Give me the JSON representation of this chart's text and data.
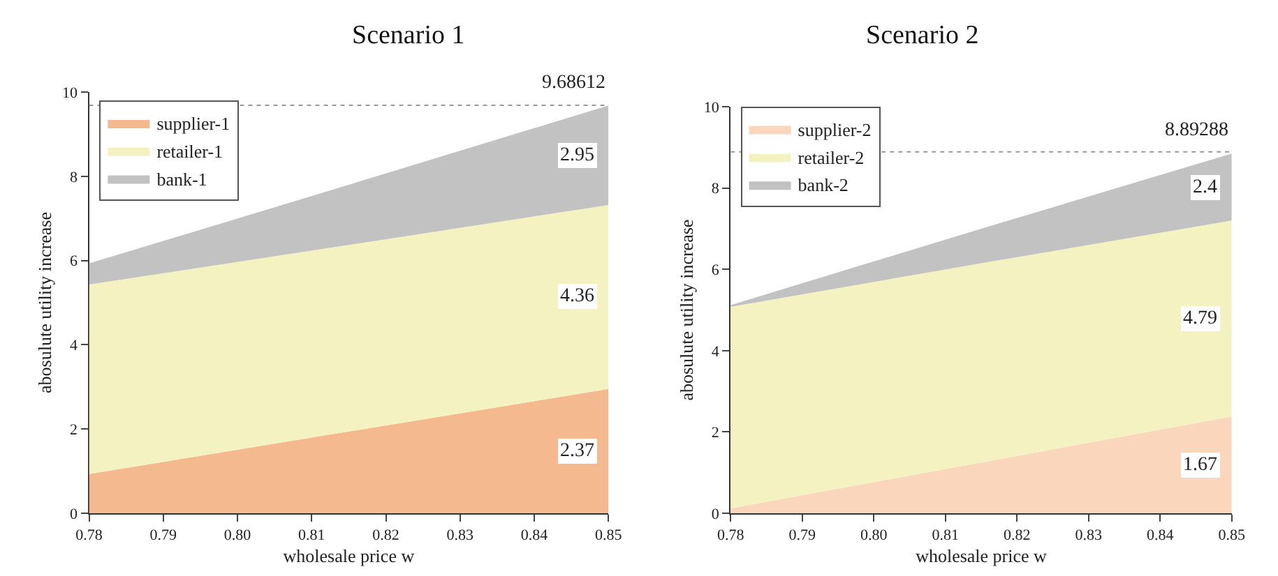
{
  "chart_data": [
    {
      "type": "area",
      "title": "Scenario 1",
      "xlabel": "wholesale price w",
      "ylabel": "abosulute utility increase",
      "stacked": true,
      "x": [
        0.78,
        0.815,
        0.85
      ],
      "series": [
        {
          "name": "supplier-1",
          "color": "#f5b98f",
          "values": [
            0.93,
            1.94,
            2.95
          ]
        },
        {
          "name": "retailer-1",
          "color": "#f5f2c2",
          "values": [
            4.5,
            4.43,
            4.37
          ]
        },
        {
          "name": "bank-1",
          "color": "#c2c2c2",
          "values": [
            0.5,
            1.43,
            2.36
          ]
        }
      ],
      "xlim": [
        0.78,
        0.85
      ],
      "xticks": [
        {
          "value": 0.78,
          "label": "0.78"
        },
        {
          "value": 0.79,
          "label": "0.79"
        },
        {
          "value": 0.8,
          "label": "0.80"
        },
        {
          "value": 0.81,
          "label": "0.81"
        },
        {
          "value": 0.82,
          "label": "0.82"
        },
        {
          "value": 0.83,
          "label": "0.83"
        },
        {
          "value": 0.84,
          "label": "0.84"
        },
        {
          "value": 0.85,
          "label": "0.85"
        }
      ],
      "ylim": [
        0,
        10
      ],
      "yticks": [
        0,
        2,
        4,
        6,
        8,
        10
      ],
      "ref_lines": [
        {
          "axis": "y",
          "value": 9.68612,
          "label": "9.68612",
          "color": "#999999",
          "line_style": "dotted"
        }
      ],
      "annotations": [
        "2.95",
        "4.36",
        "2.37"
      ],
      "legend": "top left",
      "grid": false
    },
    {
      "type": "area",
      "title": "Scenario 2",
      "xlabel": "wholesale price w",
      "ylabel": "abosulute utility increase",
      "stacked": true,
      "x": [
        0.78,
        0.815,
        0.85
      ],
      "series": [
        {
          "name": "supplier-2",
          "color": "#fad6bd",
          "values": [
            0.12,
            1.25,
            2.38
          ]
        },
        {
          "name": "retailer-2",
          "color": "#f5f2c2",
          "values": [
            4.96,
            4.9,
            4.82
          ]
        },
        {
          "name": "bank-2",
          "color": "#c2c2c2",
          "values": [
            0.04,
            0.85,
            1.65
          ]
        }
      ],
      "xlim": [
        0.78,
        0.85
      ],
      "xticks": [
        {
          "value": 0.78,
          "label": "0.78"
        },
        {
          "value": 0.79,
          "label": "0.79"
        },
        {
          "value": 0.8,
          "label": "0.80"
        },
        {
          "value": 0.81,
          "label": "0.81"
        },
        {
          "value": 0.82,
          "label": "0.82"
        },
        {
          "value": 0.83,
          "label": "0.83"
        },
        {
          "value": 0.84,
          "label": "0.84"
        },
        {
          "value": 0.85,
          "label": "0.85"
        }
      ],
      "ylim": [
        0,
        10
      ],
      "yticks": [
        0,
        2,
        4,
        6,
        8,
        10
      ],
      "ref_lines": [
        {
          "axis": "y",
          "value": 8.89288,
          "label": "8.89288",
          "color": "#999999",
          "line_style": "dotted"
        }
      ],
      "annotations": [
        "2.4",
        "4.79",
        "1.67"
      ],
      "legend": "top left",
      "grid": false
    }
  ]
}
